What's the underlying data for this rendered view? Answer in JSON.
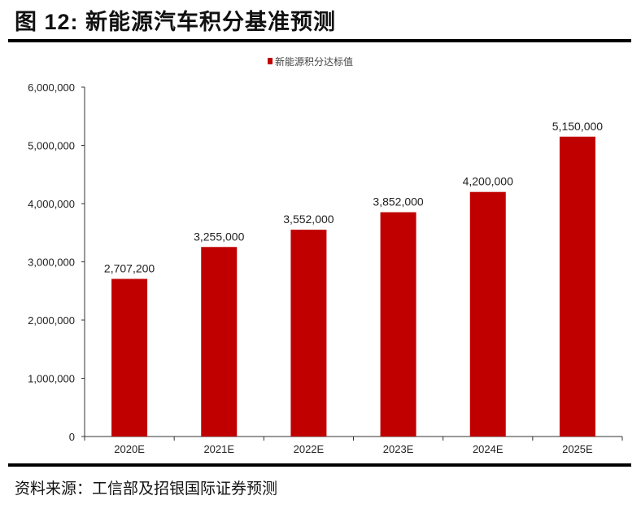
{
  "title": "图 12: 新能源汽车积分基准预测",
  "source": "资料来源：工信部及招银国际证券预测",
  "chart_data": {
    "type": "bar",
    "categories": [
      "2020E",
      "2021E",
      "2022E",
      "2023E",
      "2024E",
      "2025E"
    ],
    "series": [
      {
        "name": "新能源积分达标值",
        "values": [
          2707200,
          3255000,
          3552000,
          3852000,
          4200000,
          5150000
        ],
        "color": "#C00000"
      }
    ],
    "data_labels": [
      "2,707,200",
      "3,255,000",
      "3,552,000",
      "3,852,000",
      "4,200,000",
      "5,150,000"
    ],
    "ylim": [
      0,
      6000000
    ],
    "yticks": [
      0,
      1000000,
      2000000,
      3000000,
      4000000,
      5000000,
      6000000
    ],
    "ytick_labels": [
      "0",
      "1,000,000",
      "2,000,000",
      "3,000,000",
      "4,000,000",
      "5,000,000",
      "6,000,000"
    ],
    "legend_position": "top",
    "grid": false
  }
}
